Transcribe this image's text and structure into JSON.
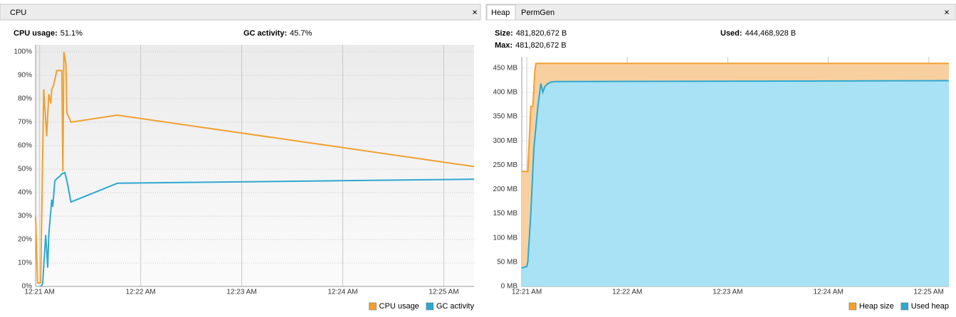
{
  "panels": [
    {
      "tabs": [
        "CPU"
      ],
      "stats": [
        {
          "label": "CPU usage:",
          "value": "51.1%"
        },
        {
          "label": "GC activity:",
          "value": "45.7%"
        }
      ]
    },
    {
      "tabs": [
        "Heap",
        "PermGen"
      ],
      "stats": [
        {
          "label": "Size:",
          "value": "481,820,672 B"
        },
        {
          "label": "Used:",
          "value": "444,468,928 B"
        },
        {
          "label": "Max:",
          "value": "481,820,672 B"
        }
      ]
    }
  ],
  "chart_data": [
    {
      "type": "line",
      "grid": true,
      "legend": "bottom-right",
      "xlim": [
        20.96,
        25.3
      ],
      "xticks": [
        {
          "value": 21,
          "label": "12:21 AM"
        },
        {
          "value": 22,
          "label": "12:22 AM"
        },
        {
          "value": 23,
          "label": "12:23 AM"
        },
        {
          "value": 24,
          "label": "12:24 AM"
        },
        {
          "value": 25,
          "label": "12:25 AM"
        }
      ],
      "ylim": [
        0,
        103
      ],
      "yticks": [
        {
          "value": 0,
          "label": "0%"
        },
        {
          "value": 10,
          "label": "10%"
        },
        {
          "value": 20,
          "label": "20%"
        },
        {
          "value": 30,
          "label": "30%"
        },
        {
          "value": 40,
          "label": "40%"
        },
        {
          "value": 50,
          "label": "50%"
        },
        {
          "value": 60,
          "label": "60%"
        },
        {
          "value": 70,
          "label": "70%"
        },
        {
          "value": 80,
          "label": "80%"
        },
        {
          "value": 90,
          "label": "90%"
        },
        {
          "value": 100,
          "label": "100%"
        }
      ],
      "series": [
        {
          "name": "CPU usage",
          "color": "#f0a030",
          "x": [
            20.96,
            20.98,
            21.01,
            21.04,
            21.07,
            21.09,
            21.11,
            21.12,
            21.14,
            21.17,
            21.22,
            21.23,
            21.24,
            21.26,
            21.27,
            21.31,
            21.77,
            25.3
          ],
          "values": [
            29.7,
            1.5,
            1.5,
            84,
            64,
            82,
            78,
            84,
            86,
            92,
            92,
            49,
            100,
            95,
            74,
            70,
            73,
            51.1
          ]
        },
        {
          "name": "GC activity",
          "color": "#2ea8d0",
          "x": [
            21.01,
            21.03,
            21.06,
            21.08,
            21.09,
            21.12,
            21.13,
            21.15,
            21.17,
            21.2,
            21.22,
            21.25,
            21.27,
            21.31,
            21.77,
            25.3
          ],
          "values": [
            0,
            1,
            22,
            8,
            22,
            37,
            34,
            45,
            46,
            47,
            48,
            48.5,
            45,
            36,
            44,
            45.7
          ]
        }
      ]
    },
    {
      "type": "area",
      "grid": true,
      "legend": "bottom-right",
      "xlim": [
        20.95,
        25.2
      ],
      "xticks": [
        {
          "value": 21,
          "label": "12:21 AM"
        },
        {
          "value": 22,
          "label": "12:22 AM"
        },
        {
          "value": 23,
          "label": "12:23 AM"
        },
        {
          "value": 24,
          "label": "12:24 AM"
        },
        {
          "value": 25,
          "label": "12:25 AM"
        }
      ],
      "ylim": [
        0,
        473
      ],
      "yticks": [
        {
          "value": 0,
          "label": "0 MB"
        },
        {
          "value": 50,
          "label": "50 MB"
        },
        {
          "value": 100,
          "label": "100 MB"
        },
        {
          "value": 150,
          "label": "150 MB"
        },
        {
          "value": 200,
          "label": "200 MB"
        },
        {
          "value": 250,
          "label": "250 MB"
        },
        {
          "value": 300,
          "label": "300 MB"
        },
        {
          "value": 350,
          "label": "350 MB"
        },
        {
          "value": 400,
          "label": "400 MB"
        },
        {
          "value": 450,
          "label": "450 MB"
        }
      ],
      "series": [
        {
          "name": "Heap size",
          "color": "#f0a030",
          "fill": "#f8d0a0",
          "x": [
            20.95,
            21.01,
            21.04,
            21.06,
            21.08,
            21.09,
            25.2
          ],
          "values": [
            237,
            237,
            371,
            371,
            444,
            459.5,
            459.5
          ]
        },
        {
          "name": "Used heap",
          "color": "#2ea8d0",
          "fill": "#a8e2f4",
          "x": [
            20.95,
            21.0,
            21.01,
            21.04,
            21.07,
            21.11,
            21.14,
            21.16,
            21.18,
            21.21,
            21.24,
            21.28,
            25.2
          ],
          "values": [
            38,
            41,
            51,
            151,
            283,
            371,
            418,
            400,
            412,
            418,
            421,
            422,
            424
          ]
        }
      ]
    }
  ]
}
